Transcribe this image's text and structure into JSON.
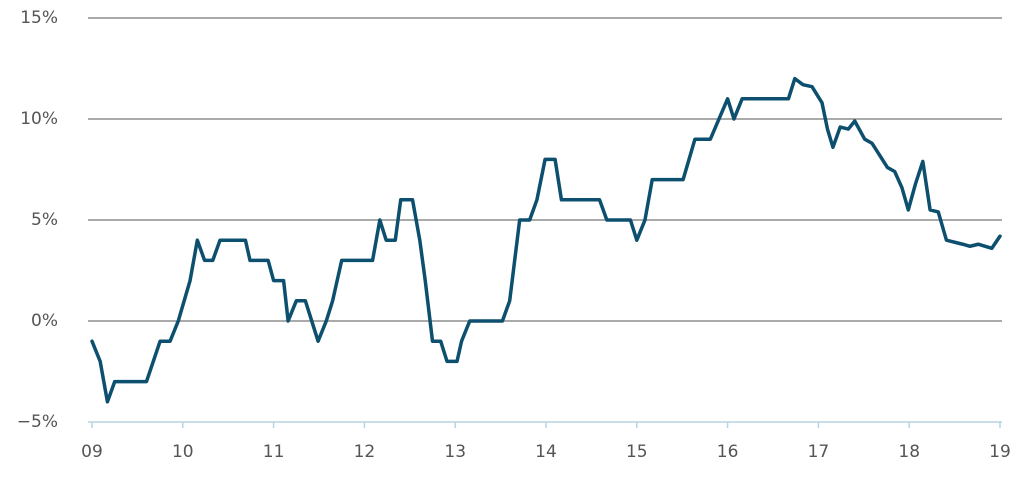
{
  "chart_data": {
    "type": "line",
    "x": [
      9.0,
      9.09,
      9.17,
      9.25,
      9.6,
      9.75,
      9.86,
      9.95,
      10.08,
      10.16,
      10.24,
      10.33,
      10.41,
      10.69,
      10.74,
      10.94,
      11.0,
      11.11,
      11.16,
      11.25,
      11.35,
      11.49,
      11.58,
      11.65,
      11.75,
      12.09,
      12.17,
      12.24,
      12.34,
      12.4,
      12.53,
      12.61,
      12.67,
      12.75,
      12.84,
      12.91,
      13.02,
      13.07,
      13.16,
      13.52,
      13.6,
      13.71,
      13.82,
      13.9,
      13.99,
      14.1,
      14.17,
      14.59,
      14.67,
      14.93,
      15.0,
      15.09,
      15.17,
      15.51,
      15.64,
      15.81,
      16.0,
      16.07,
      16.16,
      16.67,
      16.74,
      16.83,
      16.93,
      17.04,
      17.1,
      17.16,
      17.24,
      17.33,
      17.4,
      17.51,
      17.59,
      17.76,
      17.84,
      17.92,
      17.99,
      18.07,
      18.15,
      18.23,
      18.32,
      18.41,
      18.59,
      18.67,
      18.76,
      18.91,
      19.0
    ],
    "series": [
      {
        "color": "#0d4f6e",
        "values": [
          -1,
          -2,
          -4,
          -3,
          -3,
          -1,
          -1,
          0,
          2,
          4,
          3,
          3,
          4,
          4,
          3,
          3,
          2,
          2,
          0,
          1,
          1,
          -1,
          0,
          1,
          3,
          3,
          5,
          4,
          4,
          6,
          6,
          4,
          2,
          -1,
          -1,
          -2,
          -2,
          -1,
          0,
          0,
          1,
          5,
          5,
          6,
          8,
          8,
          6,
          6,
          5,
          5,
          4,
          5,
          7,
          7,
          9,
          9,
          11,
          10,
          11,
          11,
          12,
          11.7,
          11.6,
          10.8,
          9.5,
          8.6,
          9.6,
          9.5,
          9.9,
          9,
          8.8,
          7.6,
          7.4,
          6.6,
          5.5,
          6.8,
          7.9,
          5.5,
          5.4,
          4,
          3.8,
          3.7,
          3.8,
          3.6,
          4.2
        ]
      }
    ],
    "xlim": [
      9,
      19
    ],
    "xticks": [
      {
        "value": 9,
        "label": "09"
      },
      10,
      11,
      12,
      13,
      14,
      15,
      16,
      17,
      18,
      19
    ],
    "ylim": [
      -5,
      15
    ],
    "yticks": [
      {
        "value": -5,
        "label": "−5%"
      },
      {
        "value": 0,
        "label": "0%"
      },
      {
        "value": 5,
        "label": "5%"
      },
      {
        "value": 10,
        "label": "10%"
      },
      {
        "value": 15,
        "label": "15%"
      }
    ],
    "grid": true
  }
}
